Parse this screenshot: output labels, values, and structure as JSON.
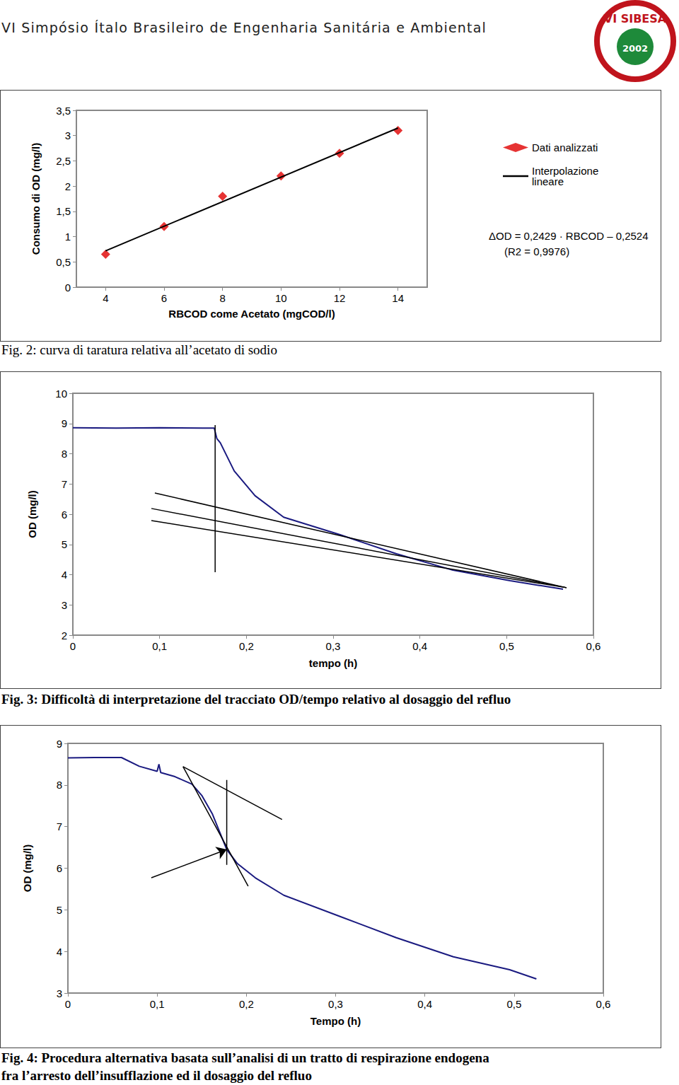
{
  "header": {
    "title": "VI Simpósio Ítalo Brasileiro de Engenharia Sanitária e Ambiental",
    "logo": [
      "VI SIBESA",
      "2002"
    ]
  },
  "chart_data": [
    {
      "type": "scatter",
      "caption": [
        "Fig. 2: curva di taratura relativa all’acetato di sodio"
      ],
      "xlabel": "RBCOD come Acetato (mgCOD/l)",
      "ylabel": "Consumo di OD (mg/l)",
      "xlim": [
        3,
        15
      ],
      "xticks": [
        4,
        6,
        8,
        10,
        12,
        14
      ],
      "ylim": [
        0,
        3.5
      ],
      "yticks": [
        0,
        {
          "value": 0.5,
          "label": "0,5"
        },
        1,
        {
          "value": 1.5,
          "label": "1,5"
        },
        2,
        {
          "value": 2.5,
          "label": "2,5"
        },
        3,
        {
          "value": 3.5,
          "label": "3,5"
        }
      ],
      "grid": false,
      "legend": "right",
      "annotations": [
        "ΔOD = 0,2429 · RBCOD – 0,2524",
        "(R2 = 0,9976)"
      ],
      "series": [
        {
          "name": "Dati analizzati",
          "type": "scatter",
          "marker": "diamond",
          "color": "#e00000",
          "x": [
            4,
            6,
            8,
            10,
            12,
            14
          ],
          "values": [
            0.65,
            1.2,
            1.8,
            2.2,
            2.65,
            3.1
          ]
        },
        {
          "name": "Interpolazione lineare",
          "type": "line",
          "color": "#000000",
          "x": [
            4,
            14
          ],
          "values": [
            0.72,
            3.15
          ]
        }
      ]
    },
    {
      "type": "line",
      "caption": [
        "Fig. 3: Difficoltà di interpretazione del tracciato OD/tempo relativo al dosaggio del refluo"
      ],
      "xlabel": "tempo (h)",
      "ylabel": "OD (mg/l)",
      "xlim": [
        0,
        0.6
      ],
      "xticks": [
        0,
        {
          "value": 0.1,
          "label": "0,1"
        },
        {
          "value": 0.2,
          "label": "0,2"
        },
        {
          "value": 0.3,
          "label": "0,3"
        },
        {
          "value": 0.4,
          "label": "0,4"
        },
        {
          "value": 0.5,
          "label": "0,5"
        },
        {
          "value": 0.6,
          "label": "0,6"
        }
      ],
      "ylim": [
        2,
        10
      ],
      "yticks": [
        2,
        3,
        4,
        5,
        6,
        7,
        8,
        9,
        10
      ],
      "grid": false,
      "series": [
        {
          "color": "#1a1a80",
          "x": [
            0,
            0.05,
            0.1,
            0.15,
            0.163,
            0.166,
            0.17,
            0.186,
            0.21,
            0.243,
            0.308,
            0.373,
            0.438,
            0.504,
            0.565
          ],
          "values": [
            8.86,
            8.85,
            8.86,
            8.85,
            8.85,
            8.5,
            8.36,
            7.43,
            6.61,
            5.9,
            5.32,
            4.69,
            4.15,
            3.8,
            3.52
          ]
        }
      ],
      "lines": [
        {
          "x": [
            0.164,
            0.164
          ],
          "y": [
            8.95,
            4.08
          ]
        },
        {
          "x": [
            0.0945,
            0.569
          ],
          "y": [
            6.7,
            3.57
          ]
        },
        {
          "x": [
            0.0905,
            0.569
          ],
          "y": [
            6.19,
            3.57
          ]
        },
        {
          "x": [
            0.0905,
            0.569
          ],
          "y": [
            5.79,
            3.57
          ]
        }
      ]
    },
    {
      "type": "line",
      "caption": [
        "Fig. 4: Procedura alternativa basata sull’analisi di un tratto di respirazione endogena",
        "fra l’arresto dell’insufflazione ed il dosaggio del refluo"
      ],
      "xlabel": "Tempo (h)",
      "ylabel": "OD (mg/l)",
      "xlim": [
        0,
        0.6
      ],
      "xticks": [
        0,
        {
          "value": 0.1,
          "label": "0,1"
        },
        {
          "value": 0.2,
          "label": "0,2"
        },
        {
          "value": 0.3,
          "label": "0,3"
        },
        {
          "value": 0.4,
          "label": "0,4"
        },
        {
          "value": 0.5,
          "label": "0,5"
        },
        {
          "value": 0.6,
          "label": "0,6"
        }
      ],
      "ylim": [
        3,
        9
      ],
      "yticks": [
        3,
        4,
        5,
        6,
        7,
        8,
        9
      ],
      "grid": false,
      "series": [
        {
          "color": "#1a1a80",
          "x": [
            0,
            0.03,
            0.06,
            0.08,
            0.1,
            0.102,
            0.104,
            0.12,
            0.139,
            0.15,
            0.162,
            0.178,
            0.19,
            0.21,
            0.242,
            0.305,
            0.368,
            0.432,
            0.495,
            0.525
          ],
          "values": [
            8.65,
            8.66,
            8.66,
            8.45,
            8.33,
            8.5,
            8.3,
            8.2,
            8.02,
            7.75,
            7.3,
            6.45,
            6.11,
            5.77,
            5.35,
            4.84,
            4.33,
            3.87,
            3.56,
            3.34
          ]
        }
      ],
      "lines": [
        {
          "x": [
            0.129,
            0.24
          ],
          "y": [
            8.44,
            7.17
          ]
        },
        {
          "x": [
            0.129,
            0.202
          ],
          "y": [
            8.44,
            5.57
          ]
        },
        {
          "x": [
            0.178,
            0.178
          ],
          "y": [
            8.12,
            6.08
          ]
        }
      ],
      "arrow": {
        "x": [
          0.0935,
          0.178
        ],
        "y": [
          5.77,
          6.45
        ]
      }
    }
  ]
}
